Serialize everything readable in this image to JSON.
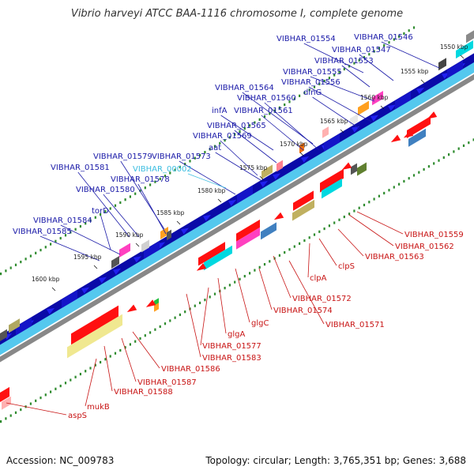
{
  "title": "Vibrio harveyi ATCC BAA-1116 chromosome I, complete genome",
  "footer": {
    "accession": "Accession: NC_009783",
    "topology": "Topology: circular; Length: 3,765,351 bp; Genes: 3,688"
  },
  "colors": {
    "forward_label": "#1a1aa8",
    "reverse_label": "#c81414",
    "highlight_label": "#3bbde0",
    "scale_tick": "#2e8b2e",
    "backbone": "#54c8ee",
    "axis": "#888888"
  },
  "kbp_markers": [
    "1550 kbp",
    "1555 kbp",
    "1560 kbp",
    "1565 kbp",
    "1570 kbp",
    "1575 kbp",
    "1580 kbp",
    "1585 kbp",
    "1590 kbp",
    "1595 kbp",
    "1600 kbp"
  ],
  "forward_labels": [
    "VIBHAR_01554",
    "VIBHAR_01546",
    "VIBHAR_01547",
    "VIBHAR_01553",
    "VIBHAR_01555",
    "VIBHAR_01556",
    "dinG",
    "VIBHAR_01564",
    "VIBHAR_01560",
    "infA",
    "VIBHAR_01561",
    "VIBHAR_01565",
    "VIBHAR_01569",
    "aat",
    "VIBHAR_01579",
    "VIBHAR_01573",
    "VIBHAR_01581",
    "VIBHAR_01578",
    "VIBHAR_01580",
    "torD",
    "VIBHAR_01584",
    "VIBHAR_01585"
  ],
  "highlight_label": "VIBHAR_00002",
  "reverse_labels": [
    "VIBHAR_01559",
    "VIBHAR_01562",
    "VIBHAR_01563",
    "clpS",
    "clpA",
    "VIBHAR_01572",
    "VIBHAR_01574",
    "VIBHAR_01571",
    "glgC",
    "glgA",
    "VIBHAR_01577",
    "VIBHAR_01583",
    "VIBHAR_01586",
    "VIBHAR_01587",
    "VIBHAR_01588",
    "mukB",
    "aspS"
  ]
}
